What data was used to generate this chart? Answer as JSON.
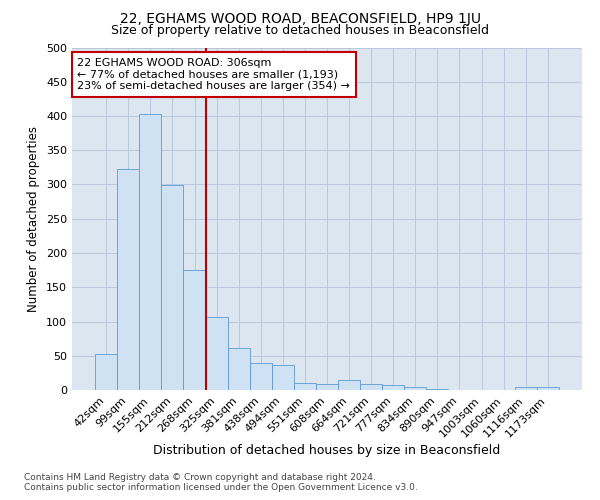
{
  "title1": "22, EGHAMS WOOD ROAD, BEACONSFIELD, HP9 1JU",
  "title2": "Size of property relative to detached houses in Beaconsfield",
  "xlabel": "Distribution of detached houses by size in Beaconsfield",
  "ylabel": "Number of detached properties",
  "footnote": "Contains HM Land Registry data © Crown copyright and database right 2024.\nContains public sector information licensed under the Open Government Licence v3.0.",
  "categories": [
    "42sqm",
    "99sqm",
    "155sqm",
    "212sqm",
    "268sqm",
    "325sqm",
    "381sqm",
    "438sqm",
    "494sqm",
    "551sqm",
    "608sqm",
    "664sqm",
    "721sqm",
    "777sqm",
    "834sqm",
    "890sqm",
    "947sqm",
    "1003sqm",
    "1060sqm",
    "1116sqm",
    "1173sqm"
  ],
  "values": [
    52,
    322,
    403,
    299,
    175,
    107,
    62,
    40,
    36,
    10,
    9,
    14,
    9,
    7,
    4,
    1,
    0,
    0,
    0,
    5,
    5
  ],
  "bar_color": "#cfe2f3",
  "bar_edge_color": "#5b9bd5",
  "vline_color": "#c00000",
  "annotation_text": "22 EGHAMS WOOD ROAD: 306sqm\n← 77% of detached houses are smaller (1,193)\n23% of semi-detached houses are larger (354) →",
  "annotation_box_color": "#ffffff",
  "annotation_box_edge_color": "#c00000",
  "ylim": [
    0,
    500
  ],
  "yticks": [
    0,
    50,
    100,
    150,
    200,
    250,
    300,
    350,
    400,
    450,
    500
  ],
  "plot_bg_color": "#dce6f1",
  "background_color": "#ffffff",
  "grid_color": "#b8c8dc",
  "title1_fontsize": 10,
  "title2_fontsize": 9,
  "xlabel_fontsize": 9,
  "ylabel_fontsize": 8.5,
  "tick_fontsize": 8,
  "annot_fontsize": 8,
  "footnote_fontsize": 6.5
}
